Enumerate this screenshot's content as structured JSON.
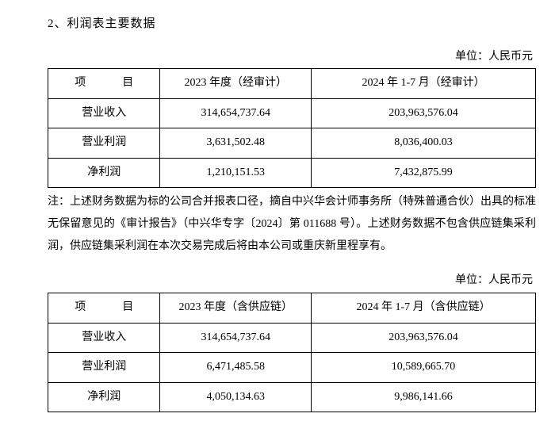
{
  "heading": "2、利润表主要数据",
  "unit_label": "单位：人民币元",
  "table1": {
    "headers": [
      "项　目",
      "2023 年度（经审计）",
      "2024 年 1-7 月（经审计）"
    ],
    "rows": [
      {
        "label": "营业收入",
        "c1": "314,654,737.64",
        "c2": "203,963,576.04"
      },
      {
        "label": "营业利润",
        "c1": "3,631,502.48",
        "c2": "8,036,400.03"
      },
      {
        "label": "净利润",
        "c1": "1,210,151.53",
        "c2": "7,432,875.99"
      }
    ]
  },
  "note_text": "注：上述财务数据为标的公司合并报表口径，摘自中兴华会计师事务所（特殊普通合伙）出具的标准无保留意见的《审计报告》（中兴华专字〔2024〕第 011688 号）。上述财务数据不包含供应链集采利润，供应链集采利润在本次交易完成后将由本公司或重庆新里程享有。",
  "table2": {
    "headers": [
      "项　目",
      "2023 年度（含供应链）",
      "2024 年 1-7 月（含供应链）"
    ],
    "rows": [
      {
        "label": "营业收入",
        "c1": "314,654,737.64",
        "c2": "203,963,576.04"
      },
      {
        "label": "营业利润",
        "c1": "6,471,485.58",
        "c2": "10,589,665.70"
      },
      {
        "label": "净利润",
        "c1": "4,050,134.63",
        "c2": "9,986,141.66"
      }
    ]
  }
}
